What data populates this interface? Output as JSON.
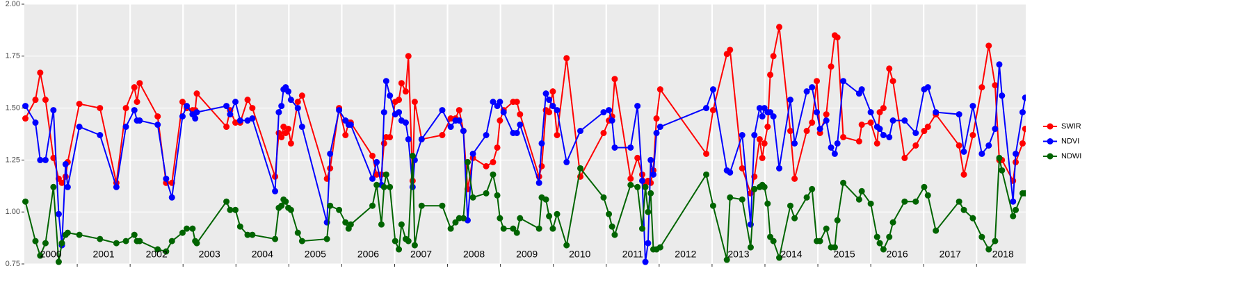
{
  "chart_data": {
    "type": "line",
    "xlim": [
      2000,
      2018.93
    ],
    "ylim": [
      0.75,
      2.0
    ],
    "yticks": [
      {
        "value": 0.75,
        "label": "0.75"
      },
      {
        "value": 1.0,
        "label": "1.00"
      },
      {
        "value": 1.25,
        "label": "1.25"
      },
      {
        "value": 1.5,
        "label": "1.50"
      },
      {
        "value": 1.75,
        "label": "1.75"
      },
      {
        "value": 2.0,
        "label": "2.00"
      }
    ],
    "xgrid": [
      2001,
      2002,
      2003,
      2004,
      2005,
      2006,
      2007,
      2008,
      2009,
      2010,
      2011,
      2012,
      2013,
      2014,
      2015,
      2016,
      2017,
      2018
    ],
    "year_labels": [
      {
        "x": 2000.5,
        "label": "2000"
      },
      {
        "x": 2001.5,
        "label": "2001"
      },
      {
        "x": 2002.5,
        "label": "2002"
      },
      {
        "x": 2003.5,
        "label": "2003"
      },
      {
        "x": 2004.5,
        "label": "2004"
      },
      {
        "x": 2005.5,
        "label": "2005"
      },
      {
        "x": 2006.5,
        "label": "2006"
      },
      {
        "x": 2007.5,
        "label": "2007"
      },
      {
        "x": 2008.5,
        "label": "2008"
      },
      {
        "x": 2009.5,
        "label": "2009"
      },
      {
        "x": 2010.5,
        "label": "2010"
      },
      {
        "x": 2011.5,
        "label": "2011"
      },
      {
        "x": 2012.5,
        "label": "2012"
      },
      {
        "x": 2013.5,
        "label": "2013"
      },
      {
        "x": 2014.5,
        "label": "2014"
      },
      {
        "x": 2015.5,
        "label": "2015"
      },
      {
        "x": 2016.5,
        "label": "2016"
      },
      {
        "x": 2017.5,
        "label": "2017"
      },
      {
        "x": 2018.5,
        "label": "2018"
      }
    ],
    "grid": true,
    "legend": "right",
    "x": [
      2000.02,
      2000.21,
      2000.3,
      2000.4,
      2000.55,
      2000.65,
      2000.71,
      2000.78,
      2000.82,
      2001.04,
      2001.43,
      2001.74,
      2001.92,
      2002.08,
      2002.13,
      2002.18,
      2002.52,
      2002.68,
      2002.79,
      2002.99,
      2003.07,
      2003.18,
      2003.23,
      2003.26,
      2003.82,
      2003.89,
      2003.99,
      2004.08,
      2004.22,
      2004.31,
      2004.74,
      2004.81,
      2004.86,
      2004.9,
      2004.94,
      2004.99,
      2005.04,
      2005.17,
      2005.25,
      2005.72,
      2005.78,
      2005.95,
      2006.07,
      2006.13,
      2006.17,
      2006.58,
      2006.66,
      2006.75,
      2006.8,
      2006.84,
      2006.91,
      2007.01,
      2007.08,
      2007.13,
      2007.21,
      2007.26,
      2007.34,
      2007.38,
      2007.51,
      2007.9,
      2008.06,
      2008.15,
      2008.22,
      2008.3,
      2008.38,
      2008.48,
      2008.73,
      2008.86,
      2008.94,
      2008.99,
      2009.06,
      2009.24,
      2009.31,
      2009.37,
      2009.73,
      2009.78,
      2009.86,
      2009.92,
      2009.99,
      2010.07,
      2010.25,
      2010.51,
      2010.95,
      2011.05,
      2011.11,
      2011.16,
      2011.46,
      2011.59,
      2011.68,
      2011.74,
      2011.79,
      2011.84,
      2011.89,
      2011.95,
      2012.02,
      2012.89,
      2013.02,
      2013.28,
      2013.34,
      2013.57,
      2013.73,
      2013.8,
      2013.9,
      2013.95,
      2013.99,
      2014.05,
      2014.1,
      2014.16,
      2014.27,
      2014.48,
      2014.56,
      2014.79,
      2014.89,
      2014.98,
      2015.04,
      2015.16,
      2015.25,
      2015.32,
      2015.37,
      2015.48,
      2015.78,
      2015.83,
      2016.0,
      2016.12,
      2016.17,
      2016.24,
      2016.35,
      2016.42,
      2016.64,
      2016.85,
      2017.01,
      2017.08,
      2017.23,
      2017.67,
      2017.76,
      2017.93,
      2018.1,
      2018.23,
      2018.35,
      2018.43,
      2018.48,
      2018.69,
      2018.74,
      2018.87,
      2018.92
    ],
    "series": [
      {
        "name": "SWIR",
        "color": "#ff0000",
        "values": [
          1.45,
          1.54,
          1.67,
          1.54,
          1.26,
          1.16,
          1.14,
          1.17,
          1.24,
          1.52,
          1.5,
          1.14,
          1.5,
          1.6,
          1.53,
          1.62,
          1.46,
          1.14,
          1.14,
          1.53,
          1.5,
          1.49,
          1.49,
          1.57,
          1.41,
          1.49,
          1.43,
          1.43,
          1.54,
          1.5,
          1.17,
          1.38,
          1.36,
          1.41,
          1.38,
          1.4,
          1.33,
          1.53,
          1.56,
          1.16,
          1.21,
          1.5,
          1.37,
          1.43,
          1.43,
          1.27,
          1.18,
          1.18,
          1.33,
          1.36,
          1.36,
          1.53,
          1.54,
          1.62,
          1.58,
          1.75,
          1.15,
          1.53,
          1.35,
          1.37,
          1.45,
          1.45,
          1.49,
          1.39,
          1.11,
          1.26,
          1.22,
          1.24,
          1.31,
          1.44,
          1.49,
          1.53,
          1.53,
          1.47,
          1.17,
          1.22,
          1.49,
          1.48,
          1.58,
          1.37,
          1.74,
          1.17,
          1.38,
          1.44,
          1.46,
          1.64,
          1.16,
          1.26,
          1.18,
          1.14,
          1.15,
          1.14,
          1.2,
          1.45,
          1.59,
          1.28,
          1.49,
          1.76,
          1.78,
          1.21,
          1.09,
          1.17,
          1.35,
          1.26,
          1.33,
          1.41,
          1.66,
          1.75,
          1.89,
          1.39,
          1.16,
          1.39,
          1.43,
          1.63,
          1.38,
          1.47,
          1.7,
          1.85,
          1.84,
          1.36,
          1.34,
          1.42,
          1.43,
          1.33,
          1.48,
          1.5,
          1.69,
          1.63,
          1.26,
          1.32,
          1.39,
          1.41,
          1.47,
          1.32,
          1.18,
          1.37,
          1.6,
          1.8,
          1.61,
          1.25,
          1.25,
          1.15,
          1.24,
          1.33,
          1.4
        ]
      },
      {
        "name": "NDVI",
        "color": "#0000ff",
        "values": [
          1.51,
          1.43,
          1.25,
          1.25,
          1.49,
          0.99,
          0.84,
          1.23,
          1.12,
          1.41,
          1.37,
          1.12,
          1.41,
          1.49,
          1.44,
          1.44,
          1.42,
          1.16,
          1.07,
          1.46,
          1.51,
          1.47,
          1.45,
          1.48,
          1.51,
          1.47,
          1.53,
          1.44,
          1.44,
          1.45,
          1.1,
          1.48,
          1.51,
          1.59,
          1.6,
          1.58,
          1.54,
          1.5,
          1.41,
          0.95,
          1.28,
          1.49,
          1.44,
          1.42,
          1.42,
          1.16,
          1.24,
          1.13,
          1.48,
          1.63,
          1.56,
          1.47,
          1.48,
          1.44,
          1.43,
          1.35,
          1.12,
          1.25,
          1.35,
          1.49,
          1.41,
          1.44,
          1.44,
          1.39,
          0.96,
          1.28,
          1.37,
          1.53,
          1.51,
          1.53,
          1.48,
          1.38,
          1.38,
          1.42,
          1.14,
          1.33,
          1.57,
          1.54,
          1.51,
          1.49,
          1.24,
          1.39,
          1.48,
          1.49,
          1.44,
          1.31,
          1.31,
          1.51,
          1.15,
          0.76,
          0.85,
          1.25,
          1.18,
          1.38,
          1.41,
          1.5,
          1.59,
          1.2,
          1.19,
          1.37,
          0.94,
          1.37,
          1.5,
          1.46,
          1.5,
          1.48,
          1.48,
          1.46,
          1.21,
          1.54,
          1.33,
          1.58,
          1.6,
          1.48,
          1.4,
          1.44,
          1.31,
          1.28,
          1.33,
          1.63,
          1.57,
          1.59,
          1.48,
          1.41,
          1.4,
          1.37,
          1.36,
          1.44,
          1.44,
          1.38,
          1.59,
          1.6,
          1.48,
          1.47,
          1.29,
          1.51,
          1.28,
          1.32,
          1.4,
          1.71,
          1.56,
          1.05,
          1.28,
          1.48,
          1.55
        ]
      },
      {
        "name": "NDWI",
        "color": "#006400",
        "values": [
          1.05,
          0.86,
          0.79,
          0.85,
          1.12,
          0.76,
          0.85,
          0.89,
          0.9,
          0.89,
          0.87,
          0.85,
          0.86,
          0.89,
          0.86,
          0.86,
          0.82,
          0.81,
          0.86,
          0.9,
          0.92,
          0.92,
          0.86,
          0.85,
          1.05,
          1.01,
          1.01,
          0.93,
          0.89,
          0.89,
          0.87,
          1.02,
          1.03,
          1.06,
          1.05,
          1.02,
          1.01,
          0.9,
          0.86,
          0.87,
          1.03,
          1.01,
          0.95,
          0.92,
          0.94,
          1.03,
          1.13,
          0.94,
          1.12,
          1.18,
          1.12,
          0.86,
          0.82,
          0.94,
          0.87,
          0.86,
          1.27,
          0.84,
          1.03,
          1.03,
          0.92,
          0.95,
          0.97,
          0.97,
          1.24,
          1.07,
          1.09,
          1.18,
          1.08,
          0.97,
          0.92,
          0.92,
          0.9,
          0.97,
          0.92,
          1.07,
          1.06,
          0.98,
          0.92,
          0.99,
          0.84,
          1.21,
          1.07,
          0.99,
          0.93,
          0.89,
          1.13,
          1.12,
          0.92,
          1.12,
          1.0,
          1.09,
          0.82,
          0.82,
          0.83,
          1.18,
          1.03,
          0.77,
          1.07,
          1.06,
          0.83,
          1.11,
          1.12,
          1.13,
          1.12,
          1.04,
          0.88,
          0.86,
          0.78,
          1.03,
          0.97,
          1.07,
          1.11,
          0.86,
          0.86,
          0.92,
          0.83,
          0.83,
          0.96,
          1.14,
          1.06,
          1.1,
          1.04,
          0.88,
          0.85,
          0.82,
          0.88,
          0.95,
          1.05,
          1.05,
          1.12,
          1.08,
          0.91,
          1.05,
          1.01,
          0.97,
          0.88,
          0.82,
          0.86,
          1.26,
          1.2,
          0.98,
          1.01,
          1.09,
          1.09
        ]
      }
    ]
  }
}
